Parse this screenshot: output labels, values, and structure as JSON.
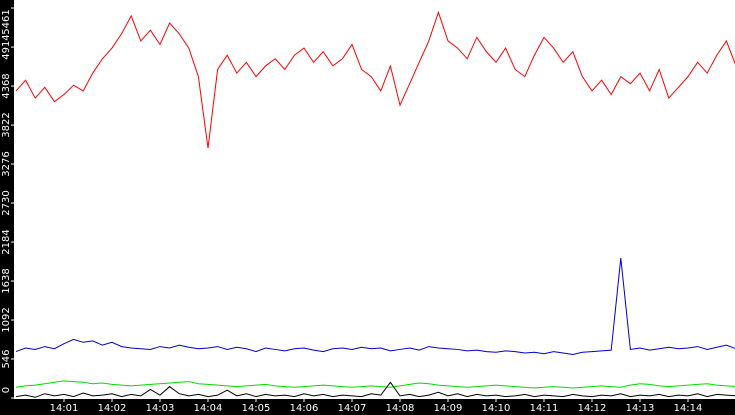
{
  "chart_data": {
    "type": "line",
    "x": [
      0,
      0.2,
      0.4,
      0.6,
      0.8,
      1,
      1.2,
      1.4,
      1.6,
      1.8,
      2,
      2.2,
      2.4,
      2.6,
      2.8,
      3,
      3.2,
      3.4,
      3.6,
      3.8,
      4,
      4.2,
      4.4,
      4.6,
      4.8,
      5,
      5.2,
      5.4,
      5.6,
      5.8,
      6,
      6.2,
      6.4,
      6.6,
      6.8,
      7,
      7.2,
      7.4,
      7.6,
      7.8,
      8,
      8.2,
      8.4,
      8.6,
      8.8,
      9,
      9.2,
      9.4,
      9.6,
      9.8,
      10,
      10.2,
      10.4,
      10.6,
      10.8,
      11,
      11.2,
      11.4,
      11.6,
      11.8,
      12,
      12.2,
      12.4,
      12.6,
      12.8,
      13,
      13.2,
      13.4,
      13.6,
      13.8,
      14,
      14.2,
      14.4,
      14.6,
      14.8,
      15
    ],
    "series": [
      {
        "color": "#ff0000",
        "values": [
          4300,
          4450,
          4200,
          4350,
          4150,
          4250,
          4380,
          4300,
          4550,
          4750,
          4900,
          5100,
          5350,
          5000,
          5150,
          4950,
          5250,
          5100,
          4900,
          4500,
          3500,
          4600,
          4800,
          4550,
          4700,
          4500,
          4650,
          4750,
          4600,
          4800,
          4900,
          4700,
          4850,
          4650,
          4750,
          4950,
          4600,
          4500,
          4300,
          4650,
          4100,
          4400,
          4700,
          5000,
          5400,
          5000,
          4900,
          4750,
          5050,
          4850,
          4700,
          4900,
          4600,
          4500,
          4800,
          5050,
          4900,
          4700,
          4850,
          4500,
          4300,
          4450,
          4250,
          4500,
          4400,
          4550,
          4300,
          4600,
          4200,
          4350,
          4500,
          4700,
          4550,
          4800,
          5000,
          4650
        ]
      },
      {
        "color": "#0000cc",
        "values": [
          650,
          700,
          680,
          720,
          690,
          760,
          820,
          780,
          800,
          740,
          780,
          720,
          700,
          690,
          680,
          720,
          700,
          740,
          710,
          690,
          700,
          720,
          680,
          710,
          690,
          650,
          700,
          680,
          660,
          690,
          700,
          670,
          650,
          690,
          700,
          680,
          710,
          690,
          700,
          660,
          680,
          700,
          670,
          720,
          700,
          690,
          680,
          660,
          670,
          650,
          640,
          660,
          650,
          630,
          640,
          620,
          650,
          630,
          610,
          640,
          650,
          660,
          670,
          1960,
          680,
          700,
          670,
          690,
          710,
          690,
          700,
          720,
          680,
          710,
          740,
          690
        ]
      },
      {
        "color": "#00dd00",
        "values": [
          150,
          170,
          180,
          200,
          220,
          240,
          230,
          220,
          200,
          210,
          190,
          180,
          170,
          180,
          190,
          200,
          210,
          220,
          230,
          200,
          190,
          180,
          170,
          160,
          170,
          180,
          190,
          170,
          160,
          150,
          160,
          170,
          180,
          170,
          160,
          150,
          160,
          170,
          160,
          150,
          170,
          190,
          210,
          200,
          180,
          170,
          160,
          150,
          160,
          170,
          180,
          170,
          160,
          150,
          140,
          150,
          160,
          150,
          140,
          150,
          160,
          170,
          160,
          150,
          180,
          200,
          190,
          170,
          160,
          170,
          180,
          190,
          200,
          180,
          170,
          160
        ]
      },
      {
        "color": "#000000",
        "values": [
          20,
          40,
          10,
          60,
          30,
          50,
          20,
          70,
          30,
          40,
          60,
          20,
          50,
          30,
          120,
          40,
          160,
          60,
          30,
          50,
          20,
          40,
          110,
          30,
          60,
          20,
          50,
          30,
          40,
          20,
          60,
          30,
          50,
          20,
          40,
          30,
          20,
          60,
          40,
          220,
          30,
          50,
          20,
          40,
          80,
          30,
          60,
          20,
          50,
          30,
          40,
          20,
          30,
          50,
          20,
          40,
          30,
          20,
          50,
          30,
          20,
          40,
          30,
          60,
          20,
          40,
          30,
          50,
          20,
          40,
          30,
          60,
          20,
          50,
          40,
          30
        ]
      }
    ],
    "xlim": [
      0,
      15
    ],
    "xticks": [
      {
        "value": 1,
        "label": "14:01"
      },
      {
        "value": 2,
        "label": "14:02"
      },
      {
        "value": 3,
        "label": "14:03"
      },
      {
        "value": 4,
        "label": "14:04"
      },
      {
        "value": 5,
        "label": "14:05"
      },
      {
        "value": 6,
        "label": "14:06"
      },
      {
        "value": 7,
        "label": "14:07"
      },
      {
        "value": 8,
        "label": "14:08"
      },
      {
        "value": 9,
        "label": "14:09"
      },
      {
        "value": 10,
        "label": "14:10"
      },
      {
        "value": 11,
        "label": "14:11"
      },
      {
        "value": 12,
        "label": "14:12"
      },
      {
        "value": 13,
        "label": "14:13"
      },
      {
        "value": 14,
        "label": "14:14"
      }
    ],
    "ylim": [
      0,
      5461
    ],
    "yticks": [
      0,
      546,
      1092,
      1638,
      2184,
      2730,
      3276,
      3822,
      4368,
      4914,
      5461
    ]
  }
}
